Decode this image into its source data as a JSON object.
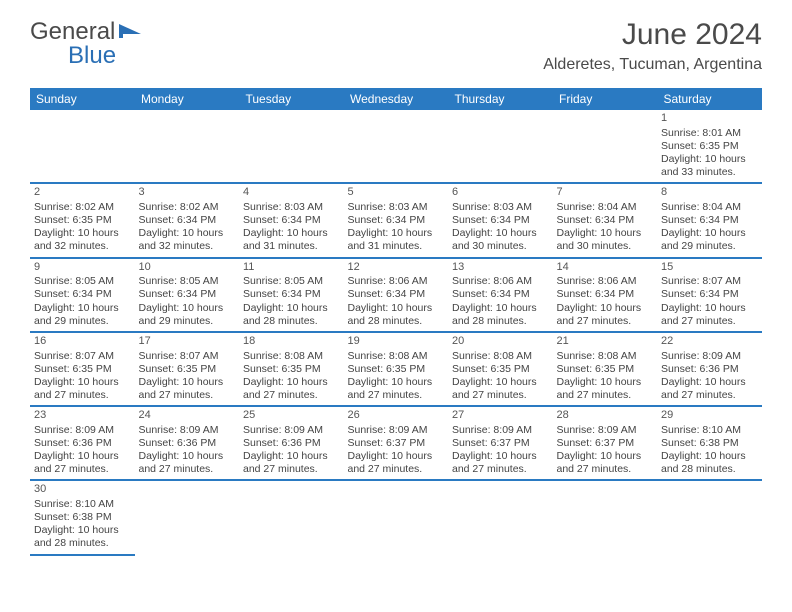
{
  "logo": {
    "part1": "General",
    "part2": "Blue"
  },
  "title": "June 2024",
  "location": "Alderetes, Tucuman, Argentina",
  "colors": {
    "header_bg": "#2a7ac2",
    "header_text": "#ffffff",
    "row_divider": "#2a7ac2",
    "body_text": "#444444",
    "title_text": "#4a4a4a",
    "logo_blue": "#2a6fb5"
  },
  "day_headers": [
    "Sunday",
    "Monday",
    "Tuesday",
    "Wednesday",
    "Thursday",
    "Friday",
    "Saturday"
  ],
  "weeks": [
    [
      null,
      null,
      null,
      null,
      null,
      null,
      {
        "n": "1",
        "sunrise": "8:01 AM",
        "sunset": "6:35 PM",
        "dl": "10 hours and 33 minutes."
      }
    ],
    [
      {
        "n": "2",
        "sunrise": "8:02 AM",
        "sunset": "6:35 PM",
        "dl": "10 hours and 32 minutes."
      },
      {
        "n": "3",
        "sunrise": "8:02 AM",
        "sunset": "6:34 PM",
        "dl": "10 hours and 32 minutes."
      },
      {
        "n": "4",
        "sunrise": "8:03 AM",
        "sunset": "6:34 PM",
        "dl": "10 hours and 31 minutes."
      },
      {
        "n": "5",
        "sunrise": "8:03 AM",
        "sunset": "6:34 PM",
        "dl": "10 hours and 31 minutes."
      },
      {
        "n": "6",
        "sunrise": "8:03 AM",
        "sunset": "6:34 PM",
        "dl": "10 hours and 30 minutes."
      },
      {
        "n": "7",
        "sunrise": "8:04 AM",
        "sunset": "6:34 PM",
        "dl": "10 hours and 30 minutes."
      },
      {
        "n": "8",
        "sunrise": "8:04 AM",
        "sunset": "6:34 PM",
        "dl": "10 hours and 29 minutes."
      }
    ],
    [
      {
        "n": "9",
        "sunrise": "8:05 AM",
        "sunset": "6:34 PM",
        "dl": "10 hours and 29 minutes."
      },
      {
        "n": "10",
        "sunrise": "8:05 AM",
        "sunset": "6:34 PM",
        "dl": "10 hours and 29 minutes."
      },
      {
        "n": "11",
        "sunrise": "8:05 AM",
        "sunset": "6:34 PM",
        "dl": "10 hours and 28 minutes."
      },
      {
        "n": "12",
        "sunrise": "8:06 AM",
        "sunset": "6:34 PM",
        "dl": "10 hours and 28 minutes."
      },
      {
        "n": "13",
        "sunrise": "8:06 AM",
        "sunset": "6:34 PM",
        "dl": "10 hours and 28 minutes."
      },
      {
        "n": "14",
        "sunrise": "8:06 AM",
        "sunset": "6:34 PM",
        "dl": "10 hours and 27 minutes."
      },
      {
        "n": "15",
        "sunrise": "8:07 AM",
        "sunset": "6:34 PM",
        "dl": "10 hours and 27 minutes."
      }
    ],
    [
      {
        "n": "16",
        "sunrise": "8:07 AM",
        "sunset": "6:35 PM",
        "dl": "10 hours and 27 minutes."
      },
      {
        "n": "17",
        "sunrise": "8:07 AM",
        "sunset": "6:35 PM",
        "dl": "10 hours and 27 minutes."
      },
      {
        "n": "18",
        "sunrise": "8:08 AM",
        "sunset": "6:35 PM",
        "dl": "10 hours and 27 minutes."
      },
      {
        "n": "19",
        "sunrise": "8:08 AM",
        "sunset": "6:35 PM",
        "dl": "10 hours and 27 minutes."
      },
      {
        "n": "20",
        "sunrise": "8:08 AM",
        "sunset": "6:35 PM",
        "dl": "10 hours and 27 minutes."
      },
      {
        "n": "21",
        "sunrise": "8:08 AM",
        "sunset": "6:35 PM",
        "dl": "10 hours and 27 minutes."
      },
      {
        "n": "22",
        "sunrise": "8:09 AM",
        "sunset": "6:36 PM",
        "dl": "10 hours and 27 minutes."
      }
    ],
    [
      {
        "n": "23",
        "sunrise": "8:09 AM",
        "sunset": "6:36 PM",
        "dl": "10 hours and 27 minutes."
      },
      {
        "n": "24",
        "sunrise": "8:09 AM",
        "sunset": "6:36 PM",
        "dl": "10 hours and 27 minutes."
      },
      {
        "n": "25",
        "sunrise": "8:09 AM",
        "sunset": "6:36 PM",
        "dl": "10 hours and 27 minutes."
      },
      {
        "n": "26",
        "sunrise": "8:09 AM",
        "sunset": "6:37 PM",
        "dl": "10 hours and 27 minutes."
      },
      {
        "n": "27",
        "sunrise": "8:09 AM",
        "sunset": "6:37 PM",
        "dl": "10 hours and 27 minutes."
      },
      {
        "n": "28",
        "sunrise": "8:09 AM",
        "sunset": "6:37 PM",
        "dl": "10 hours and 27 minutes."
      },
      {
        "n": "29",
        "sunrise": "8:10 AM",
        "sunset": "6:38 PM",
        "dl": "10 hours and 28 minutes."
      }
    ],
    [
      {
        "n": "30",
        "sunrise": "8:10 AM",
        "sunset": "6:38 PM",
        "dl": "10 hours and 28 minutes."
      },
      null,
      null,
      null,
      null,
      null,
      null
    ]
  ],
  "labels": {
    "sunrise": "Sunrise:",
    "sunset": "Sunset:",
    "daylight": "Daylight:"
  }
}
